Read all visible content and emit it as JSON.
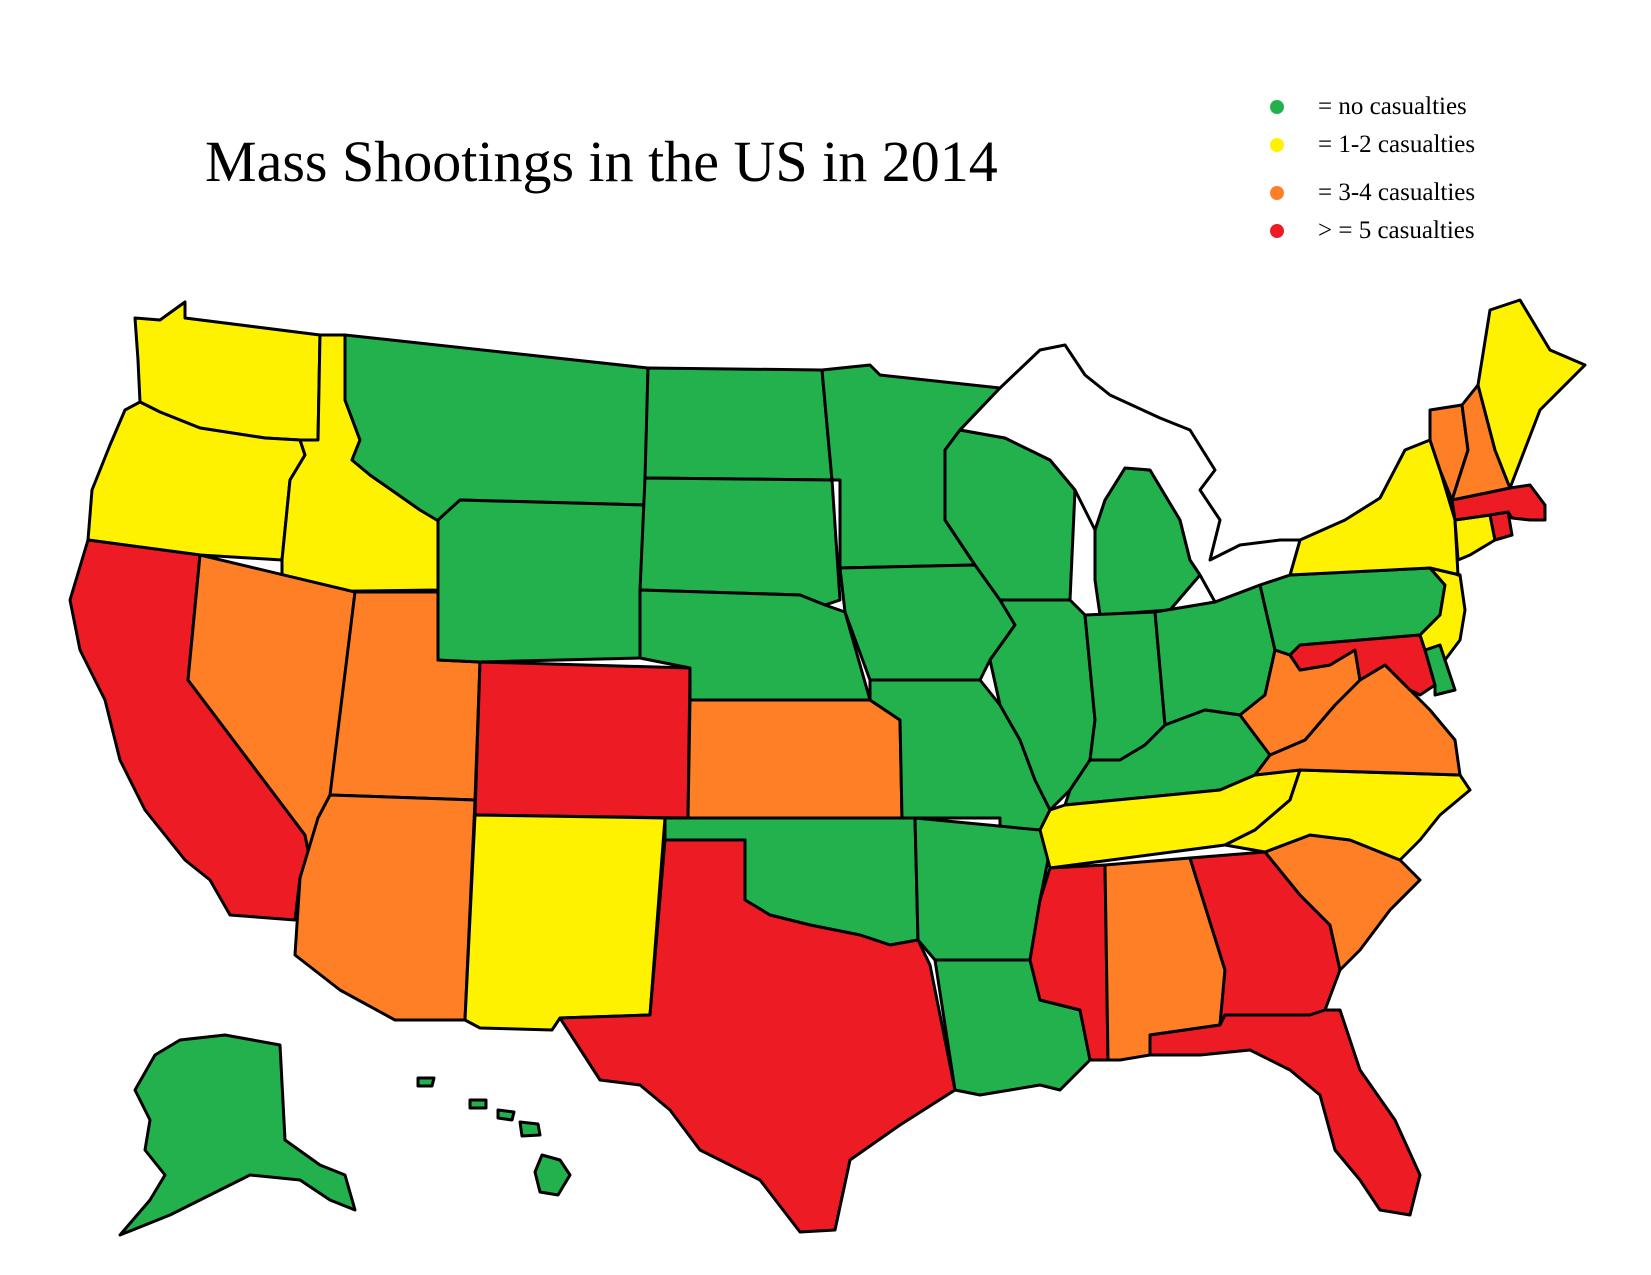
{
  "title": "Mass Shootings in the US in 2014",
  "colors": {
    "none": "#22b14c",
    "low": "#fff200",
    "mid": "#ff7f27",
    "high": "#ed1c24"
  },
  "legend": [
    {
      "category": "none",
      "label": "= no casualties"
    },
    {
      "category": "low",
      "label": "= 1-2 casualties"
    },
    {
      "category": "mid",
      "label": "= 3-4 casualties"
    },
    {
      "category": "high",
      "label": "> = 5 casualties"
    }
  ],
  "states": [
    {
      "state": "Washington",
      "category": "low"
    },
    {
      "state": "Oregon",
      "category": "low"
    },
    {
      "state": "Idaho",
      "category": "low"
    },
    {
      "state": "California",
      "category": "high"
    },
    {
      "state": "Nevada",
      "category": "mid"
    },
    {
      "state": "Utah",
      "category": "mid"
    },
    {
      "state": "Arizona",
      "category": "mid"
    },
    {
      "state": "Montana",
      "category": "none"
    },
    {
      "state": "Wyoming",
      "category": "none"
    },
    {
      "state": "Colorado",
      "category": "high"
    },
    {
      "state": "New Mexico",
      "category": "low"
    },
    {
      "state": "North Dakota",
      "category": "none"
    },
    {
      "state": "South Dakota",
      "category": "none"
    },
    {
      "state": "Nebraska",
      "category": "none"
    },
    {
      "state": "Kansas",
      "category": "mid"
    },
    {
      "state": "Oklahoma",
      "category": "none"
    },
    {
      "state": "Texas",
      "category": "high"
    },
    {
      "state": "Minnesota",
      "category": "none"
    },
    {
      "state": "Iowa",
      "category": "none"
    },
    {
      "state": "Missouri",
      "category": "none"
    },
    {
      "state": "Arkansas",
      "category": "none"
    },
    {
      "state": "Louisiana",
      "category": "none"
    },
    {
      "state": "Wisconsin",
      "category": "none"
    },
    {
      "state": "Illinois",
      "category": "none"
    },
    {
      "state": "Michigan",
      "category": "none"
    },
    {
      "state": "Indiana",
      "category": "none"
    },
    {
      "state": "Ohio",
      "category": "none"
    },
    {
      "state": "Kentucky",
      "category": "none"
    },
    {
      "state": "Tennessee",
      "category": "low"
    },
    {
      "state": "Mississippi",
      "category": "high"
    },
    {
      "state": "Alabama",
      "category": "mid"
    },
    {
      "state": "Georgia",
      "category": "high"
    },
    {
      "state": "Florida",
      "category": "high"
    },
    {
      "state": "South Carolina",
      "category": "mid"
    },
    {
      "state": "North Carolina",
      "category": "low"
    },
    {
      "state": "Virginia",
      "category": "mid"
    },
    {
      "state": "West Virginia",
      "category": "mid"
    },
    {
      "state": "Pennsylvania",
      "category": "none"
    },
    {
      "state": "New York",
      "category": "low"
    },
    {
      "state": "New Jersey",
      "category": "low"
    },
    {
      "state": "Maryland",
      "category": "high"
    },
    {
      "state": "Delaware",
      "category": "none"
    },
    {
      "state": "Connecticut",
      "category": "low"
    },
    {
      "state": "Rhode Island",
      "category": "high"
    },
    {
      "state": "Massachusetts",
      "category": "high"
    },
    {
      "state": "Vermont",
      "category": "mid"
    },
    {
      "state": "New Hampshire",
      "category": "mid"
    },
    {
      "state": "Maine",
      "category": "low"
    },
    {
      "state": "Alaska",
      "category": "none"
    },
    {
      "state": "Hawaii",
      "category": "none"
    }
  ]
}
